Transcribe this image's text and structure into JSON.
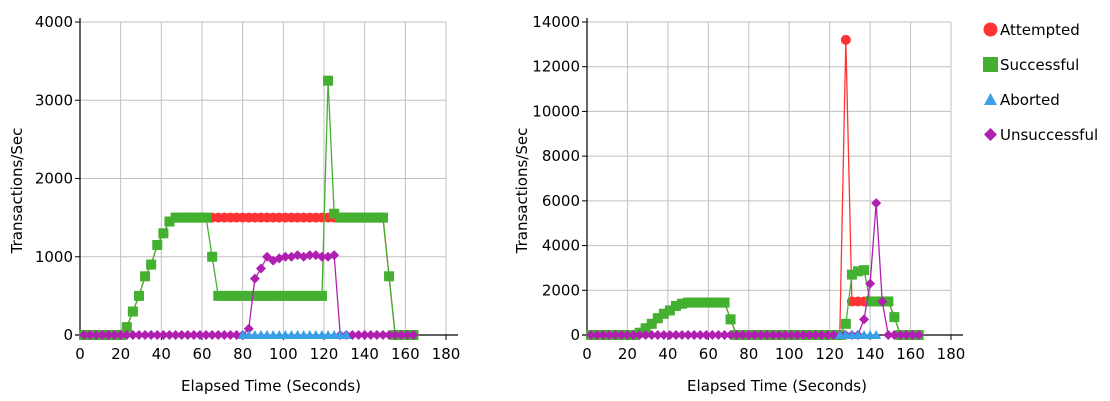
{
  "colors": {
    "attempted": "#ff3333",
    "successful": "#44b030",
    "aborted": "#3aa0e6",
    "unsuccessful": "#b020b0",
    "grid": "#c0c0c0",
    "axis": "#000000"
  },
  "legend": [
    {
      "name": "Attempted",
      "marker": "circle",
      "color": "#ff3333"
    },
    {
      "name": "Successful",
      "marker": "square",
      "color": "#44b030"
    },
    {
      "name": "Aborted",
      "marker": "triangle",
      "color": "#3aa0e6"
    },
    {
      "name": "Unsuccessful",
      "marker": "diamond",
      "color": "#b020b0"
    }
  ],
  "chart_data": [
    {
      "type": "line",
      "xlabel": "Elapsed Time (Seconds)",
      "ylabel": "Transactions/Sec",
      "xlim": [
        0,
        180
      ],
      "ylim": [
        0,
        4000
      ],
      "xticks": [
        "0",
        "20",
        "40",
        "60",
        "80",
        "100",
        "120",
        "140",
        "160",
        "180"
      ],
      "yticks": [
        "0",
        "1000",
        "2000",
        "3000",
        "4000"
      ],
      "grid": true,
      "series": [
        {
          "name": "Attempted",
          "marker": "circle",
          "color": "#ff3333",
          "x": [
            2,
            5,
            8,
            11,
            14,
            17,
            20,
            23,
            26,
            29,
            32,
            35,
            38,
            41,
            44,
            47,
            50,
            53,
            56,
            59,
            62,
            65,
            68,
            71,
            74,
            77,
            80,
            83,
            86,
            89,
            92,
            95,
            98,
            101,
            104,
            107,
            110,
            113,
            116,
            119,
            122,
            125,
            128,
            131,
            134,
            137,
            140,
            143,
            146,
            149,
            152,
            155,
            158,
            161,
            164
          ],
          "y": [
            0,
            0,
            0,
            0,
            0,
            0,
            0,
            100,
            300,
            500,
            750,
            900,
            1150,
            1300,
            1450,
            1500,
            1500,
            1500,
            1500,
            1500,
            1500,
            1500,
            1500,
            1500,
            1500,
            1500,
            1500,
            1500,
            1500,
            1500,
            1500,
            1500,
            1500,
            1500,
            1500,
            1500,
            1500,
            1500,
            1500,
            1500,
            1500,
            1500,
            1500,
            1500,
            1500,
            1500,
            1500,
            1500,
            1500,
            1500,
            750,
            0,
            0,
            0,
            0
          ]
        },
        {
          "name": "Successful",
          "marker": "square",
          "color": "#44b030",
          "x": [
            2,
            5,
            8,
            11,
            14,
            17,
            20,
            23,
            26,
            29,
            32,
            35,
            38,
            41,
            44,
            47,
            50,
            53,
            56,
            59,
            62,
            65,
            68,
            71,
            74,
            77,
            80,
            83,
            86,
            89,
            92,
            95,
            98,
            101,
            104,
            107,
            110,
            113,
            116,
            119,
            122,
            125,
            128,
            131,
            134,
            137,
            140,
            143,
            146,
            149,
            152,
            155,
            158,
            161,
            164
          ],
          "y": [
            0,
            0,
            0,
            0,
            0,
            0,
            0,
            100,
            300,
            500,
            750,
            900,
            1150,
            1300,
            1450,
            1500,
            1500,
            1500,
            1500,
            1500,
            1500,
            1000,
            500,
            500,
            500,
            500,
            500,
            500,
            500,
            500,
            500,
            500,
            500,
            500,
            500,
            500,
            500,
            500,
            500,
            500,
            3250,
            1550,
            1500,
            1500,
            1500,
            1500,
            1500,
            1500,
            1500,
            1500,
            750,
            0,
            0,
            0,
            0
          ]
        },
        {
          "name": "Aborted",
          "marker": "triangle",
          "color": "#3aa0e6",
          "x": [
            80,
            83,
            86,
            89,
            92,
            95,
            98,
            101,
            104,
            107,
            110,
            113,
            116,
            119,
            122,
            125,
            128,
            131
          ],
          "y": [
            0,
            0,
            0,
            0,
            0,
            0,
            0,
            0,
            0,
            0,
            0,
            0,
            0,
            0,
            0,
            0,
            0,
            0
          ]
        },
        {
          "name": "Unsuccessful",
          "marker": "diamond",
          "color": "#b020b0",
          "x": [
            2,
            5,
            8,
            11,
            14,
            17,
            20,
            23,
            26,
            29,
            32,
            35,
            38,
            41,
            44,
            47,
            50,
            53,
            56,
            59,
            62,
            65,
            68,
            71,
            74,
            77,
            80,
            83,
            86,
            89,
            92,
            95,
            98,
            101,
            104,
            107,
            110,
            113,
            116,
            119,
            122,
            125,
            128,
            131,
            134,
            137,
            140,
            143,
            146,
            149,
            152,
            155,
            158,
            161,
            164
          ],
          "y": [
            0,
            0,
            0,
            0,
            0,
            0,
            0,
            0,
            0,
            0,
            0,
            0,
            0,
            0,
            0,
            0,
            0,
            0,
            0,
            0,
            0,
            0,
            0,
            0,
            0,
            0,
            0,
            80,
            720,
            850,
            1000,
            950,
            980,
            1000,
            1000,
            1020,
            1000,
            1020,
            1020,
            1000,
            1000,
            1020,
            0,
            0,
            0,
            0,
            0,
            0,
            0,
            0,
            0,
            0,
            0,
            0,
            0
          ]
        }
      ]
    },
    {
      "type": "line",
      "xlabel": "Elapsed Time (Seconds)",
      "ylabel": "Transactions/Sec",
      "xlim": [
        0,
        180
      ],
      "ylim": [
        0,
        14000
      ],
      "xticks": [
        "0",
        "20",
        "40",
        "60",
        "80",
        "100",
        "120",
        "140",
        "160",
        "180"
      ],
      "yticks": [
        "0",
        "2000",
        "4000",
        "6000",
        "8000",
        "10000",
        "12000",
        "14000"
      ],
      "grid": true,
      "series": [
        {
          "name": "Attempted",
          "marker": "circle",
          "color": "#ff3333",
          "x": [
            2,
            5,
            8,
            11,
            14,
            17,
            20,
            23,
            26,
            29,
            32,
            35,
            38,
            41,
            44,
            47,
            50,
            53,
            56,
            59,
            62,
            65,
            68,
            71,
            74,
            77,
            80,
            83,
            86,
            89,
            92,
            95,
            98,
            101,
            104,
            107,
            110,
            113,
            116,
            119,
            122,
            125,
            128,
            131,
            134,
            137,
            140,
            143,
            146,
            149,
            152,
            155,
            158,
            161,
            164
          ],
          "y": [
            0,
            0,
            0,
            0,
            0,
            0,
            0,
            0,
            100,
            300,
            500,
            750,
            950,
            1100,
            1300,
            1400,
            1450,
            1450,
            1450,
            1450,
            1450,
            1450,
            1450,
            700,
            0,
            0,
            0,
            0,
            0,
            0,
            0,
            0,
            0,
            0,
            0,
            0,
            0,
            0,
            0,
            0,
            0,
            0,
            13200,
            1500,
            1500,
            1500,
            1500,
            1500,
            1500,
            1500,
            800,
            0,
            0,
            0,
            0
          ]
        },
        {
          "name": "Successful",
          "marker": "square",
          "color": "#44b030",
          "x": [
            2,
            5,
            8,
            11,
            14,
            17,
            20,
            23,
            26,
            29,
            32,
            35,
            38,
            41,
            44,
            47,
            50,
            53,
            56,
            59,
            62,
            65,
            68,
            71,
            74,
            77,
            80,
            83,
            86,
            89,
            92,
            95,
            98,
            101,
            104,
            107,
            110,
            113,
            116,
            119,
            122,
            125,
            128,
            131,
            134,
            137,
            140,
            143,
            146,
            149,
            152,
            155,
            158,
            161,
            164
          ],
          "y": [
            0,
            0,
            0,
            0,
            0,
            0,
            0,
            0,
            100,
            300,
            500,
            750,
            950,
            1100,
            1300,
            1400,
            1450,
            1450,
            1450,
            1450,
            1450,
            1450,
            1450,
            700,
            0,
            0,
            0,
            0,
            0,
            0,
            0,
            0,
            0,
            0,
            0,
            0,
            0,
            0,
            0,
            0,
            0,
            0,
            500,
            2700,
            2850,
            2900,
            1500,
            1500,
            1500,
            1500,
            800,
            0,
            0,
            0,
            0
          ]
        },
        {
          "name": "Aborted",
          "marker": "triangle",
          "color": "#3aa0e6",
          "x": [
            125,
            128,
            131,
            134,
            137,
            140,
            143
          ],
          "y": [
            0,
            0,
            0,
            0,
            0,
            0,
            0
          ]
        },
        {
          "name": "Unsuccessful",
          "marker": "diamond",
          "color": "#b020b0",
          "x": [
            2,
            5,
            8,
            11,
            14,
            17,
            20,
            23,
            26,
            29,
            32,
            35,
            38,
            41,
            44,
            47,
            50,
            53,
            56,
            59,
            62,
            65,
            68,
            71,
            74,
            77,
            80,
            83,
            86,
            89,
            92,
            95,
            98,
            101,
            104,
            107,
            110,
            113,
            116,
            119,
            122,
            125,
            128,
            131,
            134,
            137,
            140,
            143,
            146,
            149,
            152,
            155,
            158,
            161,
            164
          ],
          "y": [
            0,
            0,
            0,
            0,
            0,
            0,
            0,
            0,
            0,
            0,
            0,
            0,
            0,
            0,
            0,
            0,
            0,
            0,
            0,
            0,
            0,
            0,
            0,
            0,
            0,
            0,
            0,
            0,
            0,
            0,
            0,
            0,
            0,
            0,
            0,
            0,
            0,
            0,
            0,
            0,
            0,
            0,
            0,
            0,
            0,
            700,
            2300,
            5900,
            1500,
            0,
            0,
            0,
            0,
            0,
            0
          ]
        }
      ]
    }
  ]
}
